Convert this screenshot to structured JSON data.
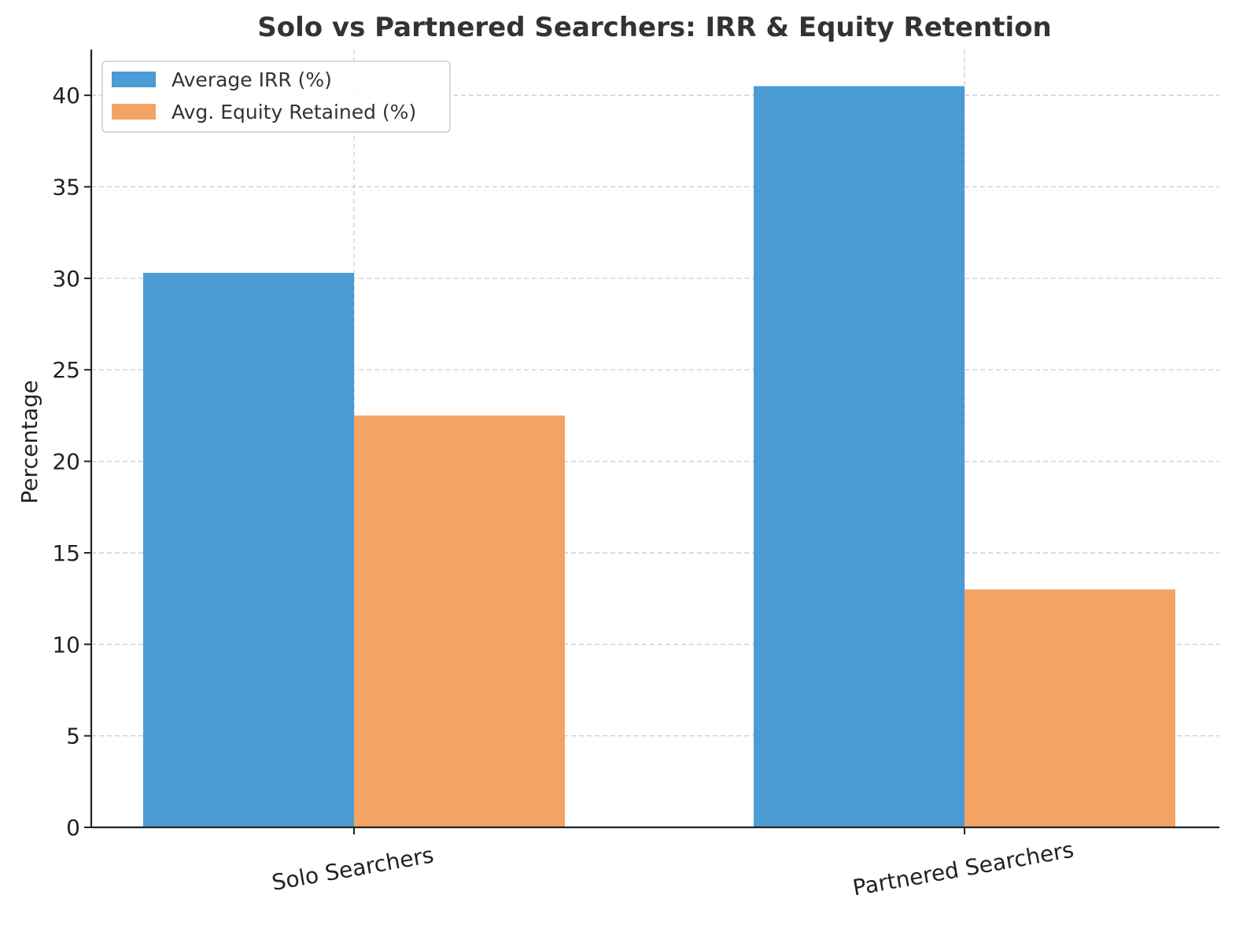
{
  "chart_data": {
    "type": "bar",
    "title": "Solo vs Partnered Searchers: IRR & Equity Retention",
    "xlabel": "",
    "ylabel": "Percentage",
    "categories": [
      "Solo Searchers",
      "Partnered Searchers"
    ],
    "series": [
      {
        "name": "Average IRR (%)",
        "values": [
          30.3,
          40.5
        ],
        "color": "#4b9bd4"
      },
      {
        "name": "Avg. Equity Retained (%)",
        "values": [
          22.5,
          13.0
        ],
        "color": "#f3a363"
      }
    ],
    "ylim": [
      0,
      42.5
    ],
    "yticks": [
      0,
      5,
      10,
      15,
      20,
      25,
      30,
      35,
      40
    ],
    "grid": true,
    "legend_position": "top-left",
    "xtick_rotation_deg": -10
  }
}
